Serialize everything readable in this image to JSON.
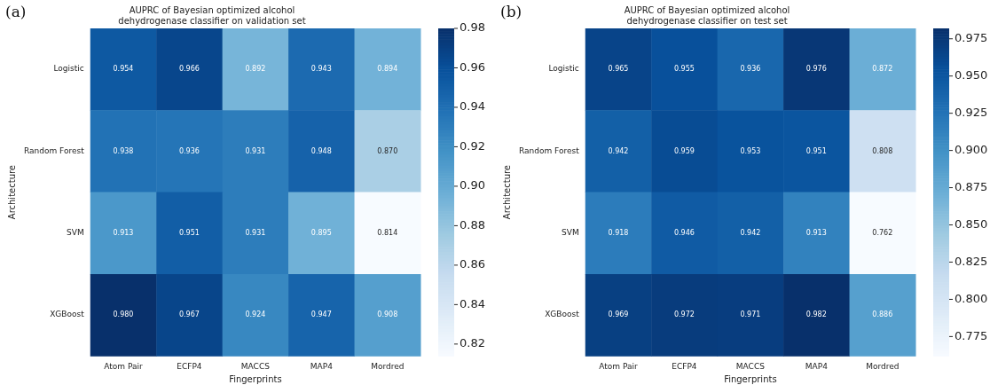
{
  "chart_data": [
    {
      "type": "heatmap",
      "title": "AUPRC of Bayesian optimized alcohol dehydrogenase classifier on validation set",
      "xlabel": "Fingerprints",
      "ylabel": "Architecture",
      "annotations": [
        "(a)"
      ],
      "categories": [
        "Atom Pair",
        "ECFP4",
        "MACCS",
        "MAP4",
        "Mordred"
      ],
      "y_categories": [
        "Logistic",
        "Random Forest",
        "SVM",
        "XGBoost"
      ],
      "cells": [
        [
          0.954,
          0.966,
          0.892,
          0.943,
          0.894
        ],
        [
          0.938,
          0.936,
          0.931,
          0.948,
          0.87
        ],
        [
          0.913,
          0.951,
          0.931,
          0.895,
          0.814
        ],
        [
          0.98,
          0.967,
          0.924,
          0.947,
          0.908
        ]
      ],
      "cell_labels": [
        [
          "0.954",
          "0.966",
          "0.892",
          "0.943",
          "0.894"
        ],
        [
          "0.938",
          "0.936",
          "0.931",
          "0.948",
          "0.870"
        ],
        [
          "0.913",
          "0.951",
          "0.931",
          "0.895",
          "0.814"
        ],
        [
          "0.980",
          "0.967",
          "0.924",
          "0.947",
          "0.908"
        ]
      ],
      "clim": [
        0.814,
        0.98
      ],
      "cticks": [
        {
          "value": 0.82,
          "label": "0.82"
        },
        {
          "value": 0.84,
          "label": "0.84"
        },
        {
          "value": 0.86,
          "label": "0.86"
        },
        {
          "value": 0.88,
          "label": "0.88"
        },
        {
          "value": 0.9,
          "label": "0.90"
        },
        {
          "value": 0.92,
          "label": "0.92"
        },
        {
          "value": 0.94,
          "label": "0.94"
        },
        {
          "value": 0.96,
          "label": "0.96"
        },
        {
          "value": 0.98,
          "label": "0.98"
        }
      ]
    },
    {
      "type": "heatmap",
      "title": "AUPRC of Bayesian optimized alcohol dehydrogenase classifier on test set",
      "xlabel": "Fingerprints",
      "ylabel": "Architecture",
      "annotations": [
        "(b)"
      ],
      "categories": [
        "Atom Pair",
        "ECFP4",
        "MACCS",
        "MAP4",
        "Mordred"
      ],
      "y_categories": [
        "Logistic",
        "Random Forest",
        "SVM",
        "XGBoost"
      ],
      "cells": [
        [
          0.965,
          0.955,
          0.936,
          0.976,
          0.872
        ],
        [
          0.942,
          0.959,
          0.953,
          0.951,
          0.808
        ],
        [
          0.918,
          0.946,
          0.942,
          0.913,
          0.762
        ],
        [
          0.969,
          0.972,
          0.971,
          0.982,
          0.886
        ]
      ],
      "cell_labels": [
        [
          "0.965",
          "0.955",
          "0.936",
          "0.976",
          "0.872"
        ],
        [
          "0.942",
          "0.959",
          "0.953",
          "0.951",
          "0.808"
        ],
        [
          "0.918",
          "0.946",
          "0.942",
          "0.913",
          "0.762"
        ],
        [
          "0.969",
          "0.972",
          "0.971",
          "0.982",
          "0.886"
        ]
      ],
      "clim": [
        0.762,
        0.982
      ],
      "cticks": [
        {
          "value": 0.775,
          "label": "0.775"
        },
        {
          "value": 0.8,
          "label": "0.800"
        },
        {
          "value": 0.825,
          "label": "0.825"
        },
        {
          "value": 0.85,
          "label": "0.850"
        },
        {
          "value": 0.875,
          "label": "0.875"
        },
        {
          "value": 0.9,
          "label": "0.900"
        },
        {
          "value": 0.925,
          "label": "0.925"
        },
        {
          "value": 0.95,
          "label": "0.950"
        },
        {
          "value": 0.975,
          "label": "0.975"
        }
      ]
    }
  ]
}
